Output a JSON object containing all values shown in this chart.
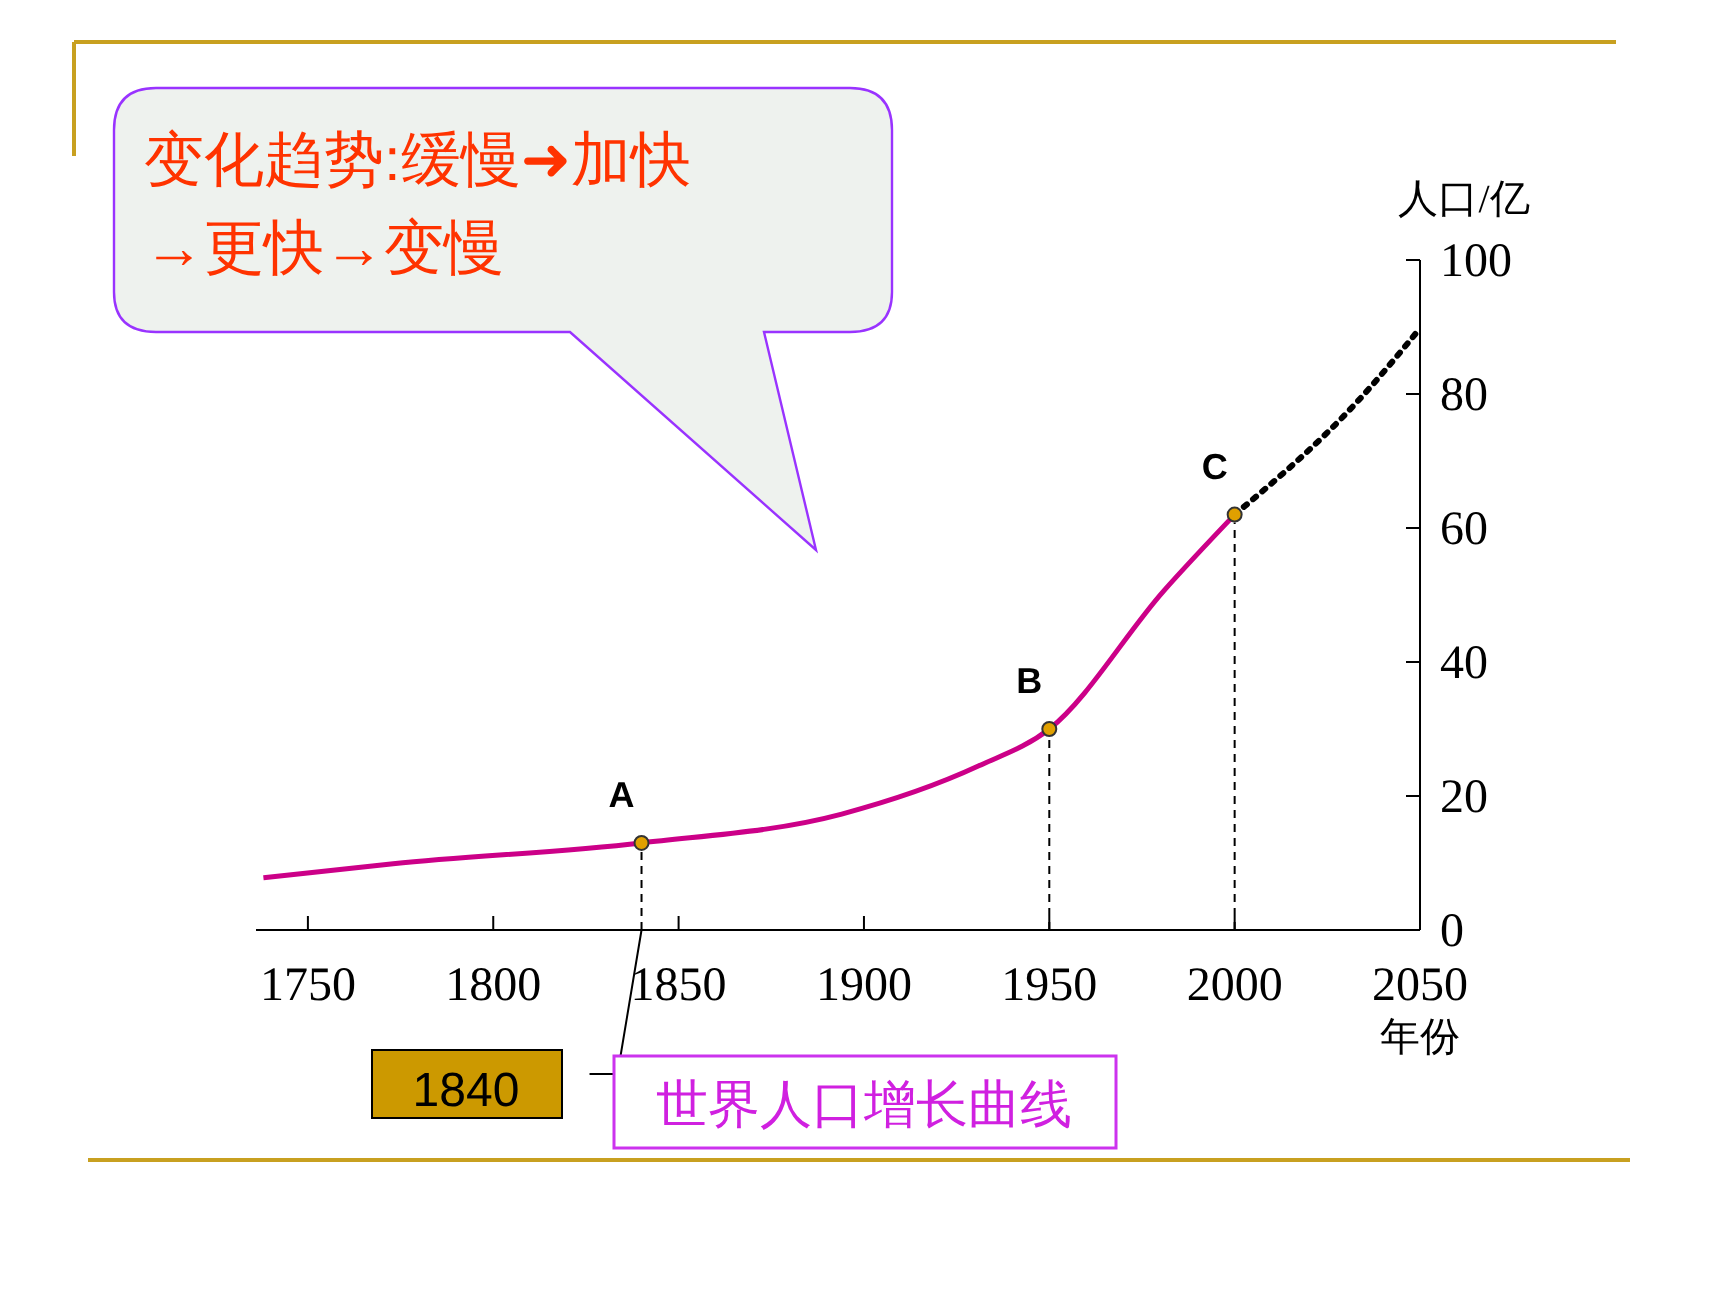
{
  "chart_data": {
    "type": "line",
    "title": "世界人口增长曲线",
    "xlabel": "年份",
    "ylabel": "人口/亿",
    "xlim": [
      1736,
      2050
    ],
    "xticks": [
      1750,
      1800,
      1850,
      1900,
      1950,
      2000,
      2050
    ],
    "ylim": [
      0,
      100
    ],
    "yticks": [
      0,
      20,
      40,
      60,
      80,
      100
    ],
    "series": [
      {
        "color": "#cc0088",
        "line_style": "solid",
        "x": [
          1738,
          1773,
          1840,
          1894,
          1931,
          1950,
          1981,
          2000
        ],
        "values": [
          7.8,
          9.9,
          13,
          17.3,
          24.5,
          30,
          50.7,
          62
        ]
      },
      {
        "color": "#000000",
        "line_style": "dotted",
        "x": [
          2000,
          2033,
          2050
        ],
        "values": [
          62,
          78.8,
          89.8
        ]
      },
      {
        "type": "scatter",
        "color": "#e0a000",
        "marker": "circle",
        "x": [
          1840,
          1950,
          2000
        ],
        "values": [
          13,
          30,
          62
        ]
      }
    ],
    "ref_lines": [
      {
        "axis": "x",
        "value": 1840,
        "line_style": "dashed",
        "color": "#000000"
      },
      {
        "axis": "x",
        "value": 1950,
        "line_style": "dashed",
        "color": "#000000"
      },
      {
        "axis": "x",
        "value": 2000,
        "line_style": "dashed",
        "color": "#000000"
      }
    ],
    "annotations": [
      {
        "text": "A",
        "x": 1840,
        "y": 13
      },
      {
        "text": "B",
        "x": 1950,
        "y": 30
      },
      {
        "text": "C",
        "x": 2000,
        "y": 62
      },
      "1840",
      "变化趋势:缓慢➜加快\n→更快→变慢"
    ]
  }
}
